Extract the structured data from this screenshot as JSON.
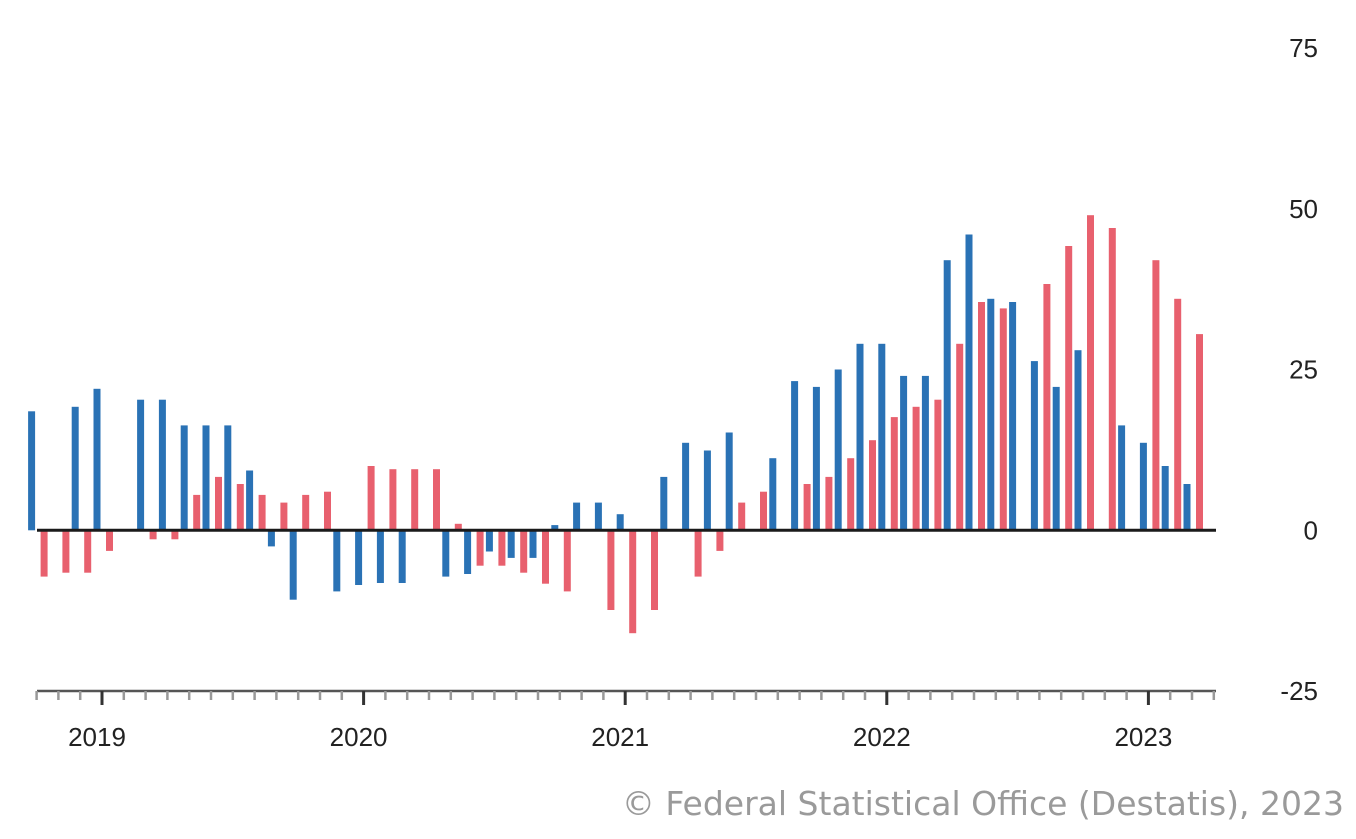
{
  "chart_data": {
    "type": "bar",
    "title": "",
    "xlabel": "",
    "ylabel": "",
    "ylim": [
      -25,
      75
    ],
    "y_ticks": [
      75,
      50,
      25,
      0,
      -25
    ],
    "y_tick_labels": [
      "75",
      "50",
      "25",
      "0",
      "-25"
    ],
    "x_ticks": [
      2019,
      2020,
      2021,
      2022,
      2023
    ],
    "x_tick_labels": [
      "2019",
      "2020",
      "2021",
      "2022",
      "2023"
    ],
    "x_start": "2018-10",
    "x_end": "2023-04",
    "grid": false,
    "legend": "none",
    "series": [
      {
        "color": "#2a72b5",
        "points": [
          {
            "x": "2018-10",
            "y": 18.5
          },
          {
            "x": "2018-12",
            "y": 19.2
          },
          {
            "x": "2019-01",
            "y": 22.0
          },
          {
            "x": "2019-03",
            "y": 20.3
          },
          {
            "x": "2019-04",
            "y": 20.3
          },
          {
            "x": "2019-05",
            "y": 16.3
          },
          {
            "x": "2019-06",
            "y": 16.3
          },
          {
            "x": "2019-07",
            "y": 16.3
          },
          {
            "x": "2019-08",
            "y": 9.3
          },
          {
            "x": "2019-09",
            "y": -2.5
          },
          {
            "x": "2019-10",
            "y": -10.8
          },
          {
            "x": "2019-12",
            "y": -9.5
          },
          {
            "x": "2020-01",
            "y": -8.5
          },
          {
            "x": "2020-02",
            "y": -8.2
          },
          {
            "x": "2020-03",
            "y": -8.2
          },
          {
            "x": "2020-05",
            "y": -7.2
          },
          {
            "x": "2020-06",
            "y": -6.8
          },
          {
            "x": "2020-07",
            "y": -3.3
          },
          {
            "x": "2020-08",
            "y": -4.3
          },
          {
            "x": "2020-09",
            "y": -4.3
          },
          {
            "x": "2020-10",
            "y": 0.8
          },
          {
            "x": "2020-11",
            "y": 4.3
          },
          {
            "x": "2020-12",
            "y": 4.3
          },
          {
            "x": "2021-01",
            "y": 2.5
          },
          {
            "x": "2021-03",
            "y": 8.3
          },
          {
            "x": "2021-04",
            "y": 13.6
          },
          {
            "x": "2021-05",
            "y": 12.4
          },
          {
            "x": "2021-06",
            "y": 15.2
          },
          {
            "x": "2021-08",
            "y": 11.2
          },
          {
            "x": "2021-09",
            "y": 23.2
          },
          {
            "x": "2021-10",
            "y": 22.3
          },
          {
            "x": "2021-11",
            "y": 25.0
          },
          {
            "x": "2021-12",
            "y": 29.0
          },
          {
            "x": "2022-01",
            "y": 29.0
          },
          {
            "x": "2022-02",
            "y": 24.0
          },
          {
            "x": "2022-03",
            "y": 24.0
          },
          {
            "x": "2022-04",
            "y": 42.0
          },
          {
            "x": "2022-05",
            "y": 46.0
          },
          {
            "x": "2022-06",
            "y": 36.0
          },
          {
            "x": "2022-07",
            "y": 35.5
          },
          {
            "x": "2022-08",
            "y": 26.3
          },
          {
            "x": "2022-09",
            "y": 22.3
          },
          {
            "x": "2022-10",
            "y": 28.0
          },
          {
            "x": "2022-12",
            "y": 16.3
          },
          {
            "x": "2023-01",
            "y": 13.6
          },
          {
            "x": "2023-02",
            "y": 10.0
          },
          {
            "x": "2023-03",
            "y": 7.2
          }
        ]
      },
      {
        "color": "#e8606e",
        "points": [
          {
            "x": "2018-10",
            "y": -7.2
          },
          {
            "x": "2018-11",
            "y": -6.6
          },
          {
            "x": "2018-12",
            "y": -6.6
          },
          {
            "x": "2019-01",
            "y": -3.2
          },
          {
            "x": "2019-03",
            "y": -1.4
          },
          {
            "x": "2019-04",
            "y": -1.4
          },
          {
            "x": "2019-05",
            "y": 5.5
          },
          {
            "x": "2019-06",
            "y": 8.3
          },
          {
            "x": "2019-07",
            "y": 7.2
          },
          {
            "x": "2019-08",
            "y": 5.5
          },
          {
            "x": "2019-09",
            "y": 4.3
          },
          {
            "x": "2019-10",
            "y": 5.5
          },
          {
            "x": "2019-11",
            "y": 6.0
          },
          {
            "x": "2020-01",
            "y": 10.0
          },
          {
            "x": "2020-02",
            "y": 9.5
          },
          {
            "x": "2020-03",
            "y": 9.5
          },
          {
            "x": "2020-04",
            "y": 9.5
          },
          {
            "x": "2020-05",
            "y": 1.0
          },
          {
            "x": "2020-06",
            "y": -5.5
          },
          {
            "x": "2020-07",
            "y": -5.5
          },
          {
            "x": "2020-08",
            "y": -6.6
          },
          {
            "x": "2020-09",
            "y": -8.3
          },
          {
            "x": "2020-10",
            "y": -9.5
          },
          {
            "x": "2020-12",
            "y": -12.4
          },
          {
            "x": "2021-01",
            "y": -16.0
          },
          {
            "x": "2021-02",
            "y": -12.4
          },
          {
            "x": "2021-04",
            "y": -7.2
          },
          {
            "x": "2021-05",
            "y": -3.2
          },
          {
            "x": "2021-06",
            "y": 4.3
          },
          {
            "x": "2021-07",
            "y": 6.0
          },
          {
            "x": "2021-09",
            "y": 7.2
          },
          {
            "x": "2021-10",
            "y": 8.3
          },
          {
            "x": "2021-11",
            "y": 11.2
          },
          {
            "x": "2021-12",
            "y": 14.0
          },
          {
            "x": "2022-01",
            "y": 17.6
          },
          {
            "x": "2022-02",
            "y": 19.2
          },
          {
            "x": "2022-03",
            "y": 20.3
          },
          {
            "x": "2022-04",
            "y": 29.0
          },
          {
            "x": "2022-05",
            "y": 35.5
          },
          {
            "x": "2022-06",
            "y": 34.5
          },
          {
            "x": "2022-08",
            "y": 38.3
          },
          {
            "x": "2022-09",
            "y": 44.2
          },
          {
            "x": "2022-10",
            "y": 49.0
          },
          {
            "x": "2022-11",
            "y": 47.0
          },
          {
            "x": "2023-01",
            "y": 42.0
          },
          {
            "x": "2023-02",
            "y": 36.0
          },
          {
            "x": "2023-03",
            "y": 30.5
          }
        ]
      }
    ]
  },
  "credit": "© Federal Statistical Office (Destatis), 2023"
}
